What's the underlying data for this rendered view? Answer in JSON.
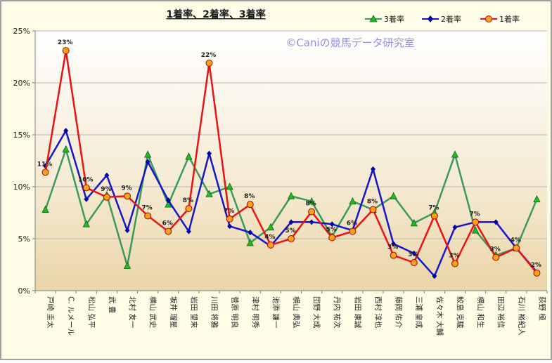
{
  "chart_data": {
    "type": "line",
    "title": "1着率、2着率、3着率",
    "watermark": "©Caniの競馬データ研究室",
    "ylim": [
      0,
      25
    ],
    "yticks": [
      "0%",
      "5%",
      "10%",
      "15%",
      "20%",
      "25%"
    ],
    "grid": true,
    "legend_position": "top-right",
    "categories": [
      "戸崎 圭太",
      "C. ルメール",
      "松山 弘平",
      "武 豊",
      "北村 友一",
      "横山 武史",
      "坂井 瑠星",
      "岩田 望来",
      "川田 将雅",
      "菅原 明良",
      "津村 明秀",
      "池添 謙一",
      "横山 典弘",
      "団野 大成",
      "丹内 祐次",
      "岩田 康誠",
      "西村 淳也",
      "藤岡 佑介",
      "三浦 皇成",
      "佐々木 大輔",
      "鮫島 克駿",
      "横山 和生",
      "田辺 裕信",
      "石川 裕紀人",
      "荻野 極"
    ],
    "series": [
      {
        "name": "3着率",
        "color": "#3a9a5c",
        "marker": "triangle",
        "marker_color": "#22bb22",
        "values": [
          7.8,
          13.6,
          6.4,
          9.2,
          2.4,
          13.1,
          8.3,
          12.9,
          9.3,
          10.0,
          4.6,
          6.1,
          9.1,
          8.6,
          5.2,
          8.6,
          7.8,
          9.1,
          6.5,
          7.5,
          13.1,
          5.8,
          3.4,
          4.1,
          8.8
        ]
      },
      {
        "name": "2着率",
        "color": "#1515cc",
        "marker": "diamond",
        "marker_color": "#0000aa",
        "values": [
          12.0,
          15.4,
          8.8,
          11.1,
          5.8,
          12.4,
          8.7,
          5.7,
          13.2,
          6.2,
          5.6,
          4.3,
          6.6,
          6.6,
          6.4,
          5.8,
          11.7,
          4.5,
          3.6,
          1.4,
          6.1,
          6.6,
          6.6,
          4.1,
          1.8
        ]
      },
      {
        "name": "1着率",
        "color": "#ee1111",
        "marker": "circle",
        "marker_color": "#f5a31a",
        "values": [
          11.4,
          23.1,
          9.9,
          9.0,
          9.1,
          7.2,
          5.7,
          7.9,
          21.9,
          6.9,
          8.3,
          4.4,
          5.0,
          7.6,
          5.1,
          5.7,
          7.8,
          3.4,
          2.7,
          7.2,
          2.6,
          6.6,
          3.2,
          4.1,
          1.7
        ],
        "data_labels": [
          "11%",
          "23%",
          "10%",
          "9%",
          "9%",
          "7%",
          "6%",
          "8%",
          "22%",
          "7%",
          "8%",
          "4%",
          "5%",
          "8%",
          "5%",
          "6%",
          "8%",
          "3%",
          "3%",
          "7%",
          "3%",
          "7%",
          "3%",
          "4%",
          "2%"
        ]
      }
    ]
  }
}
